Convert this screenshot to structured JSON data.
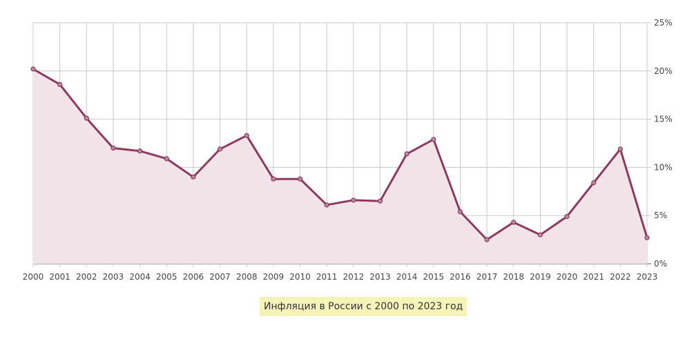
{
  "chart_data": {
    "type": "area",
    "title": "Инфляция в России с 2000 по 2023 год",
    "xlabel": "",
    "ylabel": "",
    "categories": [
      "2000",
      "2001",
      "2002",
      "2003",
      "2004",
      "2005",
      "2006",
      "2007",
      "2008",
      "2009",
      "2010",
      "2011",
      "2012",
      "2013",
      "2014",
      "2015",
      "2016",
      "2017",
      "2018",
      "2019",
      "2020",
      "2021",
      "2022",
      "2023"
    ],
    "series": [
      {
        "name": "Инфляция",
        "values": [
          20.2,
          18.6,
          15.1,
          12.0,
          11.7,
          10.9,
          9.0,
          11.9,
          13.3,
          8.8,
          8.8,
          6.1,
          6.6,
          6.5,
          11.4,
          12.9,
          5.4,
          2.5,
          4.3,
          3.0,
          4.9,
          8.4,
          11.9,
          2.7
        ],
        "color": "#8b3a5e",
        "fill": "#f1e3e8"
      }
    ],
    "ylim": [
      0,
      25
    ],
    "yticks": [
      "0%",
      "5%",
      "10%",
      "15%",
      "20%",
      "25%"
    ],
    "ytick_values": [
      0,
      5,
      10,
      15,
      20,
      25
    ],
    "y_axis_position": "right",
    "grid": true,
    "legend": "none"
  },
  "caption": "Инфляция в России с 2000 по 2023 год"
}
